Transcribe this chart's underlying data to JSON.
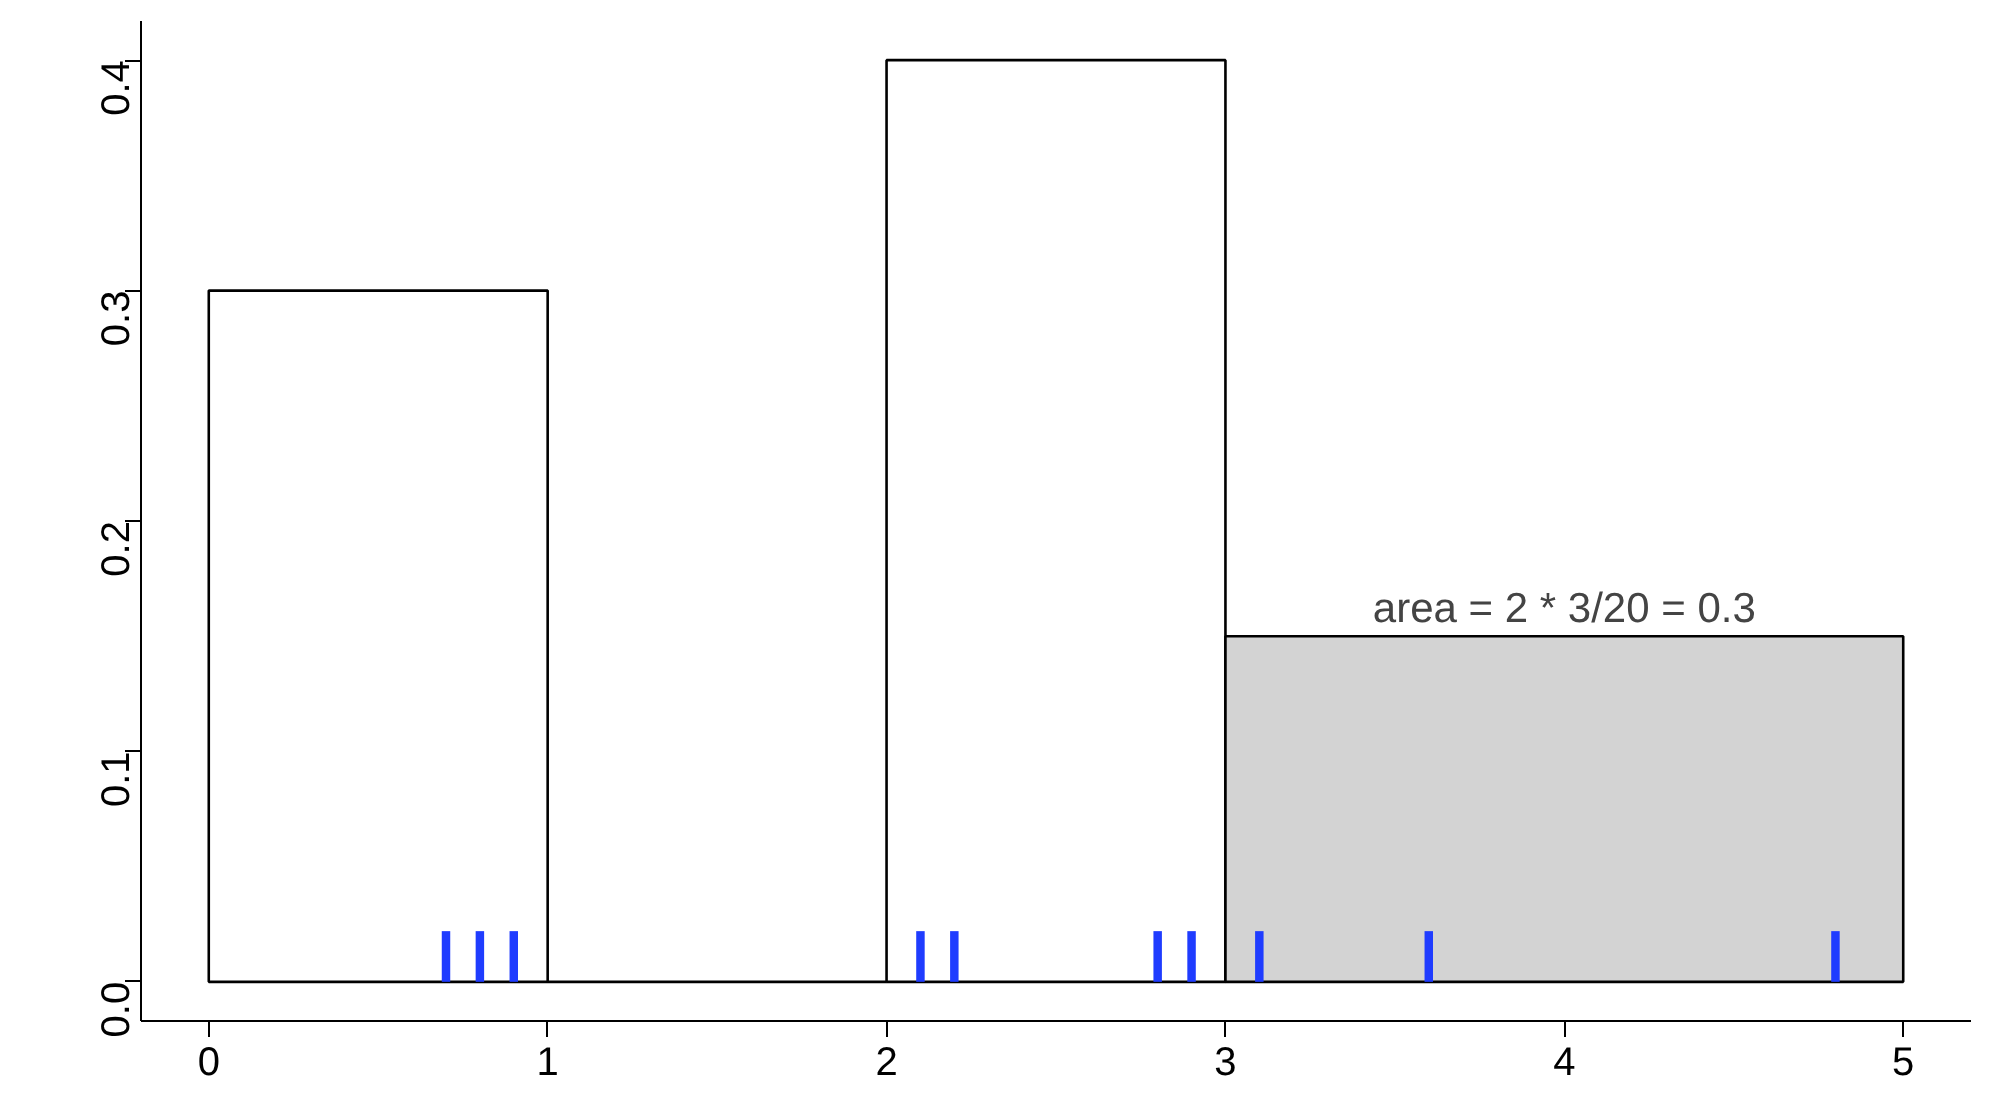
{
  "chart_data": {
    "type": "histogram",
    "bins": [
      0,
      1,
      2,
      3,
      5
    ],
    "values": [
      0.3,
      0,
      0.4,
      0.15
    ],
    "colors": [
      "#ffffff",
      "#000000",
      "#ffffff",
      "#d3d3d3"
    ],
    "series": [
      {
        "type": "bar",
        "x": [
          0.7,
          0.8,
          0.9,
          2.1,
          2.2,
          2.8,
          2.9,
          3.1,
          3.6,
          4.8
        ],
        "values": [
          0.022,
          0.022,
          0.022,
          0.022,
          0.022,
          0.022,
          0.022,
          0.022,
          0.022,
          0.022
        ],
        "color": "#1f3cff"
      }
    ],
    "xlim": [
      -0.2,
      5.2
    ],
    "ylim": [
      -0.017,
      0.417
    ],
    "xticks": [
      0,
      1,
      2,
      3,
      4,
      5
    ],
    "yticks": [
      {
        "value": 0,
        "label": "0.0"
      },
      {
        "value": 0.1,
        "label": "0.1"
      },
      {
        "value": 0.2,
        "label": "0.2"
      },
      {
        "value": 0.3,
        "label": "0.3"
      },
      {
        "value": 0.4,
        "label": "0.4"
      }
    ],
    "annotations": [
      {
        "text": "area = 2 * 3/20 = 0.3",
        "x": 4,
        "y": 0.15
      }
    ],
    "grid": false
  }
}
